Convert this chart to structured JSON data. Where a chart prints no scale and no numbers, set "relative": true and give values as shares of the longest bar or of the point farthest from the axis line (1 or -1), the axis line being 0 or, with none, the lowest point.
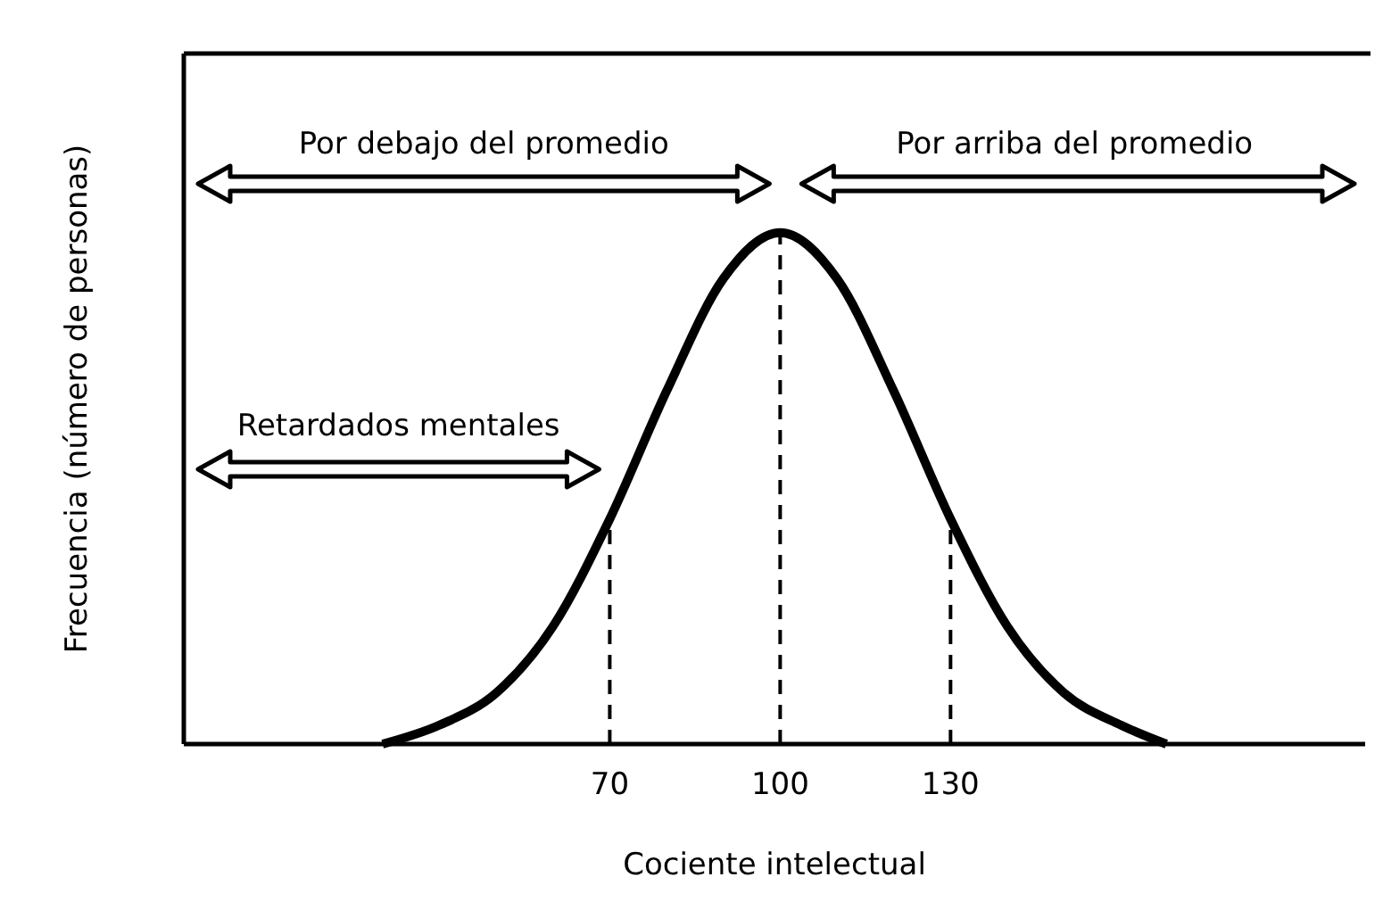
{
  "chart_data": {
    "type": "line",
    "relative": true,
    "xlabel": "Cociente intelectual",
    "ylabel": "Frecuencia (número de personas)",
    "x": [
      30,
      40,
      50,
      60,
      70,
      80,
      90,
      100,
      110,
      120,
      130,
      140,
      150,
      160,
      168
    ],
    "values": [
      0,
      0.037,
      0.1,
      0.23,
      0.44,
      0.69,
      0.91,
      1,
      0.91,
      0.69,
      0.44,
      0.23,
      0.1,
      0.037,
      0
    ],
    "color": "#000000",
    "marker": "none",
    "line_style": "solid",
    "xlim": [
      -5,
      203
    ],
    "xticks": [
      70,
      100,
      130
    ],
    "ref_lines": [
      {
        "axis": "x",
        "value": 70,
        "line_style": "dashed",
        "color": "#000000"
      },
      {
        "axis": "x",
        "value": 100,
        "line_style": "dashed",
        "color": "#000000"
      },
      {
        "axis": "x",
        "value": 130,
        "line_style": "dashed",
        "color": "#000000"
      }
    ],
    "annotations": [
      "Por debajo del promedio",
      "Por arriba del promedio",
      "Retardados mentales"
    ]
  }
}
